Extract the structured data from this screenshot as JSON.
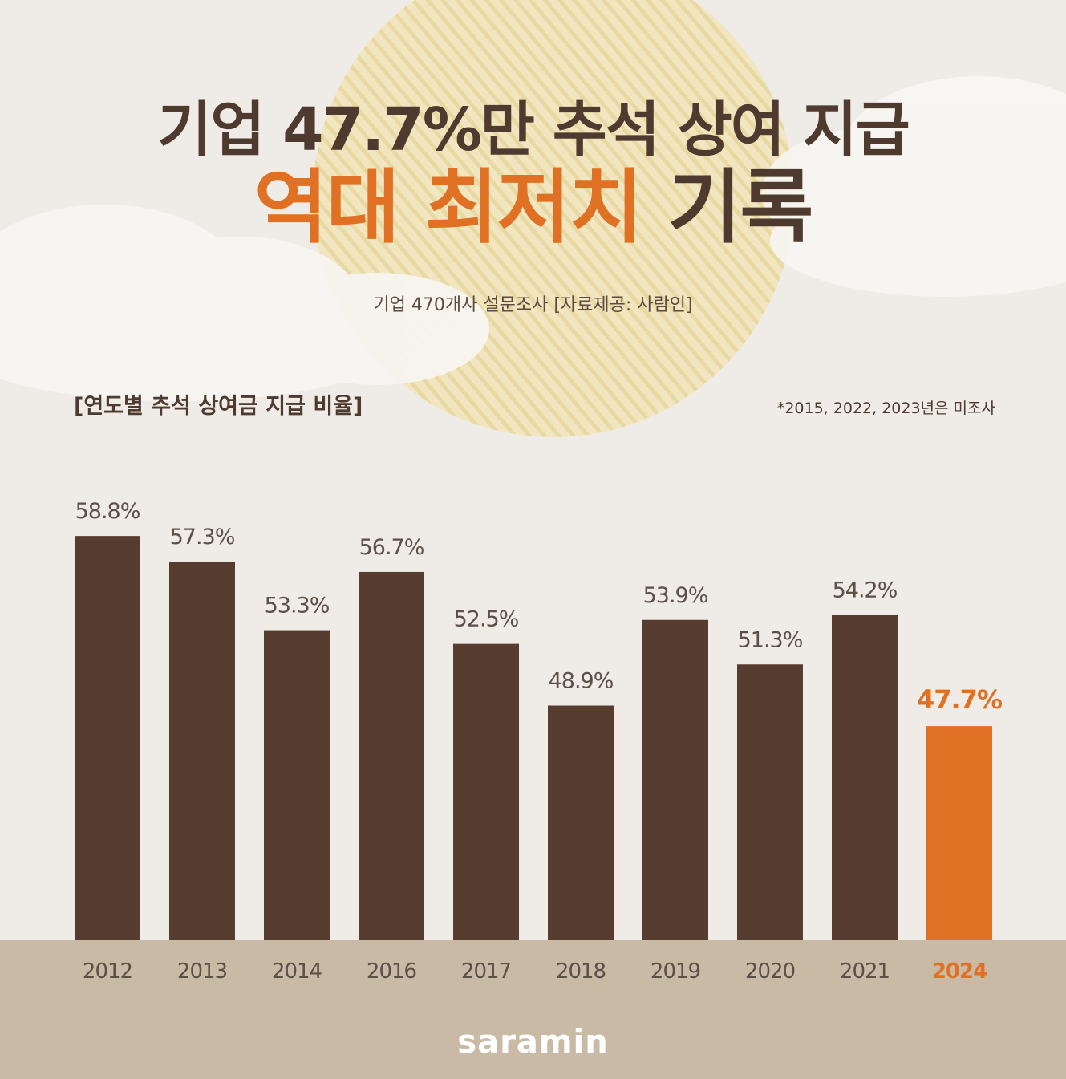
{
  "title": {
    "line1": "기업 47.7%만 추석 상여 지급",
    "line2_accent": "역대 최저치",
    "line2_rest": "기록"
  },
  "subtitle": "기업 470개사 설문조사  [자료제공: 사람인]",
  "chart_heading": "[연도별 추석 상여금 지급 비율]",
  "chart_note": "*2015, 2022, 2023년은 미조사",
  "brand": "saramin",
  "colors": {
    "background": "#efebe6",
    "bar": "#563d2f",
    "highlight": "#e07024",
    "ground": "#c9baa6",
    "title": "#4e3a2f",
    "label": "#5b5048"
  },
  "chart_data": {
    "type": "bar",
    "title": "[연도별 추석 상여금 지급 비율]",
    "categories": [
      "2012",
      "2013",
      "2014",
      "2016",
      "2017",
      "2018",
      "2019",
      "2020",
      "2021",
      "2024"
    ],
    "values": [
      58.8,
      57.3,
      53.3,
      56.7,
      52.5,
      48.9,
      53.9,
      51.3,
      54.2,
      47.7
    ],
    "value_labels": [
      "58.8%",
      "57.3%",
      "53.3%",
      "56.7%",
      "52.5%",
      "48.9%",
      "53.9%",
      "51.3%",
      "54.2%",
      "47.7%"
    ],
    "highlight_category": "2024",
    "ylim": [
      35.2,
      60
    ],
    "xlabel": "",
    "ylabel": "",
    "grid": false,
    "legend": "none"
  }
}
